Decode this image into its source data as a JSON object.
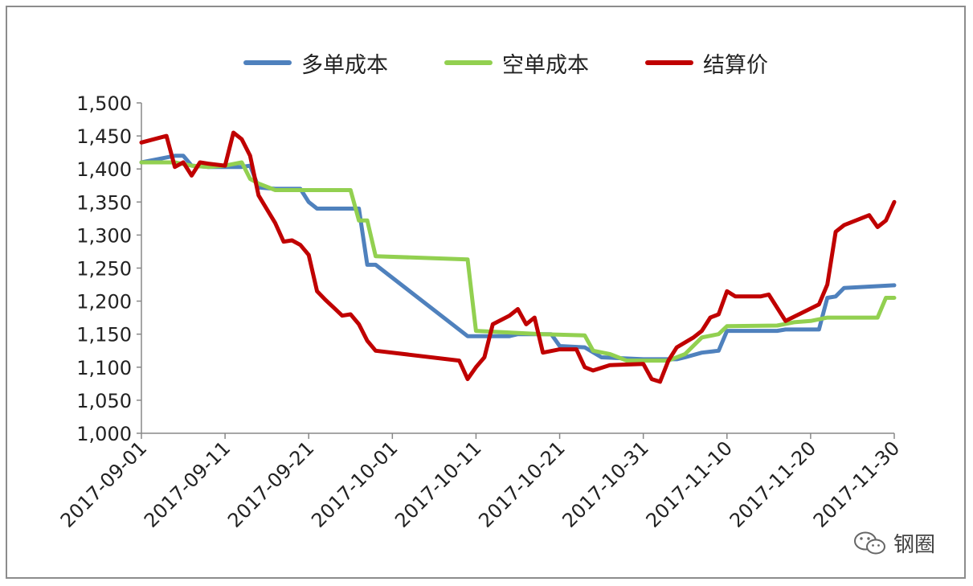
{
  "chart_data": {
    "type": "line",
    "ylim": [
      1000,
      1500
    ],
    "yticks": [
      "1,000",
      "1,050",
      "1,100",
      "1,150",
      "1,200",
      "1,250",
      "1,300",
      "1,350",
      "1,400",
      "1,450",
      "1,500"
    ],
    "xlim": [
      "2017-09-01",
      "2017-11-30"
    ],
    "xticks": [
      "2017-09-01",
      "2017-09-11",
      "2017-09-21",
      "2017-10-01",
      "2017-10-11",
      "2017-10-21",
      "2017-10-31",
      "2017-11-10",
      "2017-11-20",
      "2017-11-30"
    ],
    "grid": false,
    "legend_position": "top",
    "series": [
      {
        "name": "多单成本",
        "color": "#4f81bd",
        "points": [
          [
            "2017-09-01",
            1410
          ],
          [
            "2017-09-03",
            1415
          ],
          [
            "2017-09-05",
            1420
          ],
          [
            "2017-09-06",
            1420
          ],
          [
            "2017-09-07",
            1405
          ],
          [
            "2017-09-09",
            1403
          ],
          [
            "2017-09-11",
            1403
          ],
          [
            "2017-09-13",
            1403
          ],
          [
            "2017-09-14",
            1405
          ],
          [
            "2017-09-15",
            1372
          ],
          [
            "2017-09-17",
            1370
          ],
          [
            "2017-09-20",
            1370
          ],
          [
            "2017-09-21",
            1350
          ],
          [
            "2017-09-22",
            1340
          ],
          [
            "2017-09-26",
            1340
          ],
          [
            "2017-09-27",
            1340
          ],
          [
            "2017-09-28",
            1255
          ],
          [
            "2017-09-29",
            1255
          ],
          [
            "2017-10-10",
            1147
          ],
          [
            "2017-10-15",
            1147
          ],
          [
            "2017-10-16",
            1150
          ],
          [
            "2017-10-20",
            1150
          ],
          [
            "2017-10-21",
            1132
          ],
          [
            "2017-10-24",
            1130
          ],
          [
            "2017-10-26",
            1115
          ],
          [
            "2017-10-31",
            1112
          ],
          [
            "2017-11-04",
            1112
          ],
          [
            "2017-11-05",
            1115
          ],
          [
            "2017-11-07",
            1122
          ],
          [
            "2017-11-09",
            1125
          ],
          [
            "2017-11-10",
            1155
          ],
          [
            "2017-11-16",
            1155
          ],
          [
            "2017-11-17",
            1157
          ],
          [
            "2017-11-21",
            1157
          ],
          [
            "2017-11-22",
            1205
          ],
          [
            "2017-11-23",
            1207
          ],
          [
            "2017-11-24",
            1220
          ],
          [
            "2017-11-30",
            1224
          ]
        ]
      },
      {
        "name": "空单成本",
        "color": "#92d050",
        "points": [
          [
            "2017-09-01",
            1410
          ],
          [
            "2017-09-05",
            1410
          ],
          [
            "2017-09-07",
            1405
          ],
          [
            "2017-09-09",
            1403
          ],
          [
            "2017-09-11",
            1405
          ],
          [
            "2017-09-13",
            1410
          ],
          [
            "2017-09-14",
            1385
          ],
          [
            "2017-09-15",
            1378
          ],
          [
            "2017-09-17",
            1368
          ],
          [
            "2017-09-26",
            1368
          ],
          [
            "2017-09-27",
            1322
          ],
          [
            "2017-09-28",
            1322
          ],
          [
            "2017-09-29",
            1268
          ],
          [
            "2017-10-10",
            1263
          ],
          [
            "2017-10-11",
            1155
          ],
          [
            "2017-10-19",
            1150
          ],
          [
            "2017-10-24",
            1148
          ],
          [
            "2017-10-25",
            1125
          ],
          [
            "2017-10-27",
            1120
          ],
          [
            "2017-10-29",
            1110
          ],
          [
            "2017-11-03",
            1110
          ],
          [
            "2017-11-05",
            1120
          ],
          [
            "2017-11-07",
            1145
          ],
          [
            "2017-11-09",
            1150
          ],
          [
            "2017-11-10",
            1162
          ],
          [
            "2017-11-16",
            1163
          ],
          [
            "2017-11-18",
            1168
          ],
          [
            "2017-11-20",
            1170
          ],
          [
            "2017-11-22",
            1175
          ],
          [
            "2017-11-28",
            1175
          ],
          [
            "2017-11-29",
            1205
          ],
          [
            "2017-11-30",
            1205
          ]
        ]
      },
      {
        "name": "结算价",
        "color": "#c00000",
        "points": [
          [
            "2017-09-01",
            1440
          ],
          [
            "2017-09-04",
            1450
          ],
          [
            "2017-09-05",
            1403
          ],
          [
            "2017-09-06",
            1410
          ],
          [
            "2017-09-07",
            1390
          ],
          [
            "2017-09-08",
            1410
          ],
          [
            "2017-09-09",
            1408
          ],
          [
            "2017-09-11",
            1405
          ],
          [
            "2017-09-12",
            1455
          ],
          [
            "2017-09-13",
            1445
          ],
          [
            "2017-09-14",
            1420
          ],
          [
            "2017-09-15",
            1360
          ],
          [
            "2017-09-17",
            1318
          ],
          [
            "2017-09-18",
            1290
          ],
          [
            "2017-09-19",
            1292
          ],
          [
            "2017-09-20",
            1285
          ],
          [
            "2017-09-21",
            1270
          ],
          [
            "2017-09-22",
            1215
          ],
          [
            "2017-09-23",
            1202
          ],
          [
            "2017-09-24",
            1190
          ],
          [
            "2017-09-25",
            1178
          ],
          [
            "2017-09-26",
            1180
          ],
          [
            "2017-09-27",
            1165
          ],
          [
            "2017-09-28",
            1140
          ],
          [
            "2017-09-29",
            1125
          ],
          [
            "2017-10-09",
            1110
          ],
          [
            "2017-10-10",
            1082
          ],
          [
            "2017-10-11",
            1100
          ],
          [
            "2017-10-12",
            1115
          ],
          [
            "2017-10-13",
            1165
          ],
          [
            "2017-10-15",
            1178
          ],
          [
            "2017-10-16",
            1188
          ],
          [
            "2017-10-17",
            1165
          ],
          [
            "2017-10-18",
            1175
          ],
          [
            "2017-10-19",
            1122
          ],
          [
            "2017-10-21",
            1127
          ],
          [
            "2017-10-23",
            1127
          ],
          [
            "2017-10-24",
            1100
          ],
          [
            "2017-10-25",
            1095
          ],
          [
            "2017-10-27",
            1103
          ],
          [
            "2017-10-31",
            1105
          ],
          [
            "2017-11-01",
            1082
          ],
          [
            "2017-11-02",
            1078
          ],
          [
            "2017-11-03",
            1110
          ],
          [
            "2017-11-04",
            1130
          ],
          [
            "2017-11-06",
            1145
          ],
          [
            "2017-11-07",
            1155
          ],
          [
            "2017-11-08",
            1175
          ],
          [
            "2017-11-09",
            1180
          ],
          [
            "2017-11-10",
            1215
          ],
          [
            "2017-11-11",
            1207
          ],
          [
            "2017-11-14",
            1207
          ],
          [
            "2017-11-15",
            1210
          ],
          [
            "2017-11-17",
            1170
          ],
          [
            "2017-11-21",
            1195
          ],
          [
            "2017-11-22",
            1225
          ],
          [
            "2017-11-23",
            1305
          ],
          [
            "2017-11-24",
            1315
          ],
          [
            "2017-11-27",
            1330
          ],
          [
            "2017-11-28",
            1312
          ],
          [
            "2017-11-29",
            1322
          ],
          [
            "2017-11-30",
            1350
          ]
        ]
      }
    ]
  },
  "watermark": {
    "icon": "wechat-icon",
    "text": "钢圈"
  }
}
